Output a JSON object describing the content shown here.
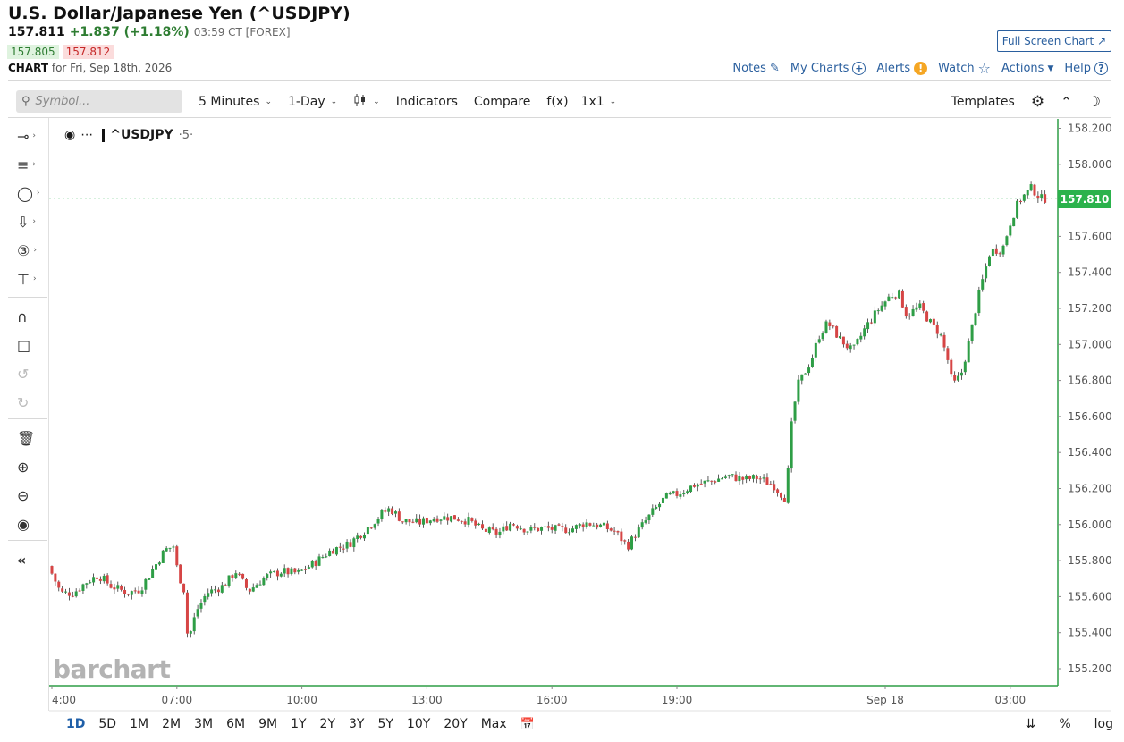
{
  "header": {
    "title": "U.S. Dollar/Japanese Yen (^USDJPY)",
    "last": "157.811",
    "change": "+1.837 (+1.18%)",
    "time": "03:59 CT [FOREX]",
    "bid": "157.805",
    "ask": "157.812",
    "chart_label": "CHART",
    "chart_for": "for Fri, Sep 18th, 2026"
  },
  "top_links": {
    "fullscreen": "Full Screen Chart",
    "notes": "Notes",
    "my_charts": "My Charts",
    "alerts": "Alerts",
    "watch": "Watch",
    "actions": "Actions",
    "help": "Help"
  },
  "toolbar": {
    "symbol_placeholder": "Symbol...",
    "interval": "5 Minutes",
    "period": "1-Day",
    "indicators": "Indicators",
    "compare": "Compare",
    "fx": "f(x)",
    "layout": "1x1",
    "templates": "Templates"
  },
  "legend": {
    "symbol": "^USDJPY",
    "interval": "·5·"
  },
  "watermark": "barchart",
  "last_price_tag": "157.810",
  "ranges": [
    "1D",
    "5D",
    "1M",
    "2M",
    "3M",
    "6M",
    "9M",
    "1Y",
    "2Y",
    "3Y",
    "5Y",
    "10Y",
    "20Y",
    "Max"
  ],
  "bottom_right": {
    "percent": "%",
    "log": "log"
  },
  "colors": {
    "up": "#2e9e46",
    "down": "#d64545",
    "accent": "#2a5f9e",
    "price_tag": "#2bb24c"
  },
  "chart_data": {
    "type": "candlestick",
    "symbol": "^USDJPY",
    "interval": "5 Minutes",
    "y_ticks": [
      158.2,
      158.0,
      157.8,
      157.6,
      157.4,
      157.2,
      157.0,
      156.8,
      156.6,
      156.4,
      156.2,
      156.0,
      155.8,
      155.6,
      155.4,
      155.2
    ],
    "y_tick_labels": [
      "158.200",
      "158.000",
      "157.800",
      "157.600",
      "157.400",
      "157.200",
      "157.000",
      "156.800",
      "156.600",
      "156.400",
      "156.200",
      "156.000",
      "155.800",
      "155.600",
      "155.400",
      "155.200"
    ],
    "x_tick_labels": [
      "4:00",
      "07:00",
      "10:00",
      "13:00",
      "16:00",
      "19:00",
      "Sep 18",
      "03:00"
    ],
    "x_tick_hours": [
      4,
      7,
      10,
      13,
      16,
      19,
      24,
      27
    ],
    "x_range_hours": [
      4.0,
      28.0
    ],
    "ylim": [
      155.1,
      158.25
    ],
    "last_price": 157.81,
    "close_path": [
      [
        4.0,
        155.77
      ],
      [
        4.3,
        155.62
      ],
      [
        4.6,
        155.62
      ],
      [
        4.9,
        155.68
      ],
      [
        5.2,
        155.72
      ],
      [
        5.5,
        155.66
      ],
      [
        5.9,
        155.62
      ],
      [
        6.2,
        155.64
      ],
      [
        6.5,
        155.75
      ],
      [
        6.8,
        155.86
      ],
      [
        7.0,
        155.88
      ],
      [
        7.1,
        155.74
      ],
      [
        7.25,
        155.64
      ],
      [
        7.35,
        155.35
      ],
      [
        7.55,
        155.52
      ],
      [
        7.8,
        155.62
      ],
      [
        8.2,
        155.66
      ],
      [
        8.5,
        155.74
      ],
      [
        8.8,
        155.63
      ],
      [
        9.2,
        155.71
      ],
      [
        9.6,
        155.74
      ],
      [
        10.0,
        155.73
      ],
      [
        10.4,
        155.79
      ],
      [
        10.8,
        155.86
      ],
      [
        11.2,
        155.89
      ],
      [
        11.6,
        155.97
      ],
      [
        12.0,
        156.06
      ],
      [
        12.2,
        156.09
      ],
      [
        12.5,
        156.02
      ],
      [
        12.9,
        156.01
      ],
      [
        13.3,
        156.04
      ],
      [
        13.7,
        156.04
      ],
      [
        14.1,
        156.02
      ],
      [
        14.4,
        155.97
      ],
      [
        14.8,
        155.95
      ],
      [
        15.1,
        156.01
      ],
      [
        15.5,
        155.97
      ],
      [
        15.9,
        155.98
      ],
      [
        16.3,
        155.97
      ],
      [
        16.6,
        155.98
      ],
      [
        16.9,
        156.01
      ],
      [
        17.3,
        155.99
      ],
      [
        17.6,
        155.96
      ],
      [
        17.9,
        155.88
      ],
      [
        18.1,
        155.95
      ],
      [
        18.5,
        156.07
      ],
      [
        18.8,
        156.15
      ],
      [
        19.1,
        156.17
      ],
      [
        19.5,
        156.22
      ],
      [
        19.9,
        156.24
      ],
      [
        20.3,
        156.27
      ],
      [
        20.7,
        156.25
      ],
      [
        21.0,
        156.26
      ],
      [
        21.4,
        156.22
      ],
      [
        21.7,
        156.14
      ],
      [
        21.85,
        156.6
      ],
      [
        22.0,
        156.78
      ],
      [
        22.3,
        156.91
      ],
      [
        22.5,
        157.05
      ],
      [
        22.7,
        157.12
      ],
      [
        23.0,
        157.03
      ],
      [
        23.3,
        156.96
      ],
      [
        23.6,
        157.09
      ],
      [
        23.9,
        157.19
      ],
      [
        24.2,
        157.27
      ],
      [
        24.4,
        157.29
      ],
      [
        24.6,
        157.16
      ],
      [
        24.9,
        157.21
      ],
      [
        25.2,
        157.11
      ],
      [
        25.4,
        157.06
      ],
      [
        25.6,
        156.9
      ],
      [
        25.7,
        156.77
      ],
      [
        25.9,
        156.83
      ],
      [
        26.1,
        157.02
      ],
      [
        26.3,
        157.25
      ],
      [
        26.6,
        157.52
      ],
      [
        26.9,
        157.53
      ],
      [
        27.1,
        157.69
      ],
      [
        27.3,
        157.8
      ],
      [
        27.6,
        157.87
      ],
      [
        27.8,
        157.81
      ]
    ]
  }
}
